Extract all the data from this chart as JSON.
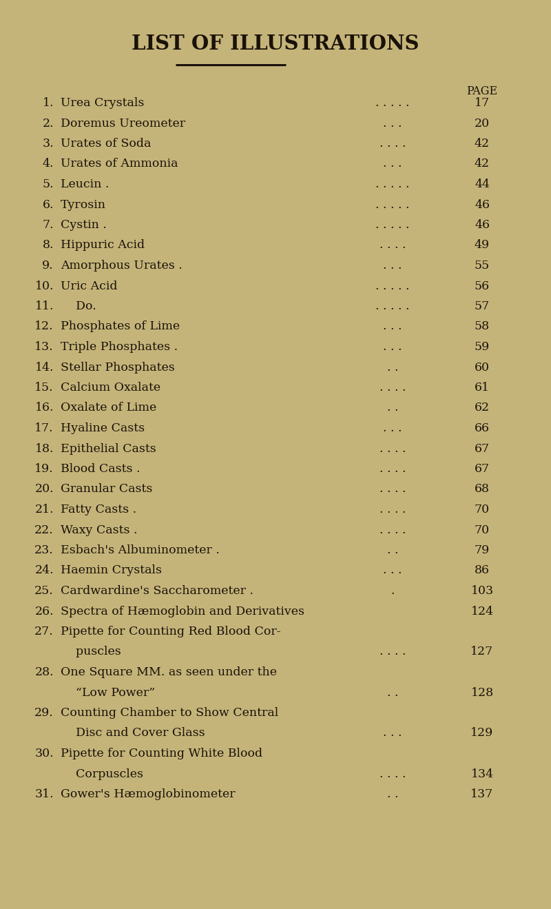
{
  "title": "LIST OF ILLUSTRATIONS",
  "background_color": "#c5b47a",
  "text_color": "#1a1208",
  "page_label": "PAGE",
  "entries": [
    {
      "num": "1.",
      "text": "Urea Crystals",
      "dots": ". . . . .",
      "page": "17"
    },
    {
      "num": "2.",
      "text": "Doremus Ureometer",
      "dots": ". . .",
      "page": "20"
    },
    {
      "num": "3.",
      "text": "Urates of Soda",
      "dots": ". . . .",
      "page": "42"
    },
    {
      "num": "4.",
      "text": "Urates of Ammonia",
      "dots": ". . .",
      "page": "42"
    },
    {
      "num": "5.",
      "text": "Leucin .",
      "dots": ". . . . .",
      "page": "44"
    },
    {
      "num": "6.",
      "text": "Tyrosin",
      "dots": ". . . . .",
      "page": "46"
    },
    {
      "num": "7.",
      "text": "Cystin .",
      "dots": ". . . . .",
      "page": "46"
    },
    {
      "num": "8.",
      "text": "Hippuric Acid",
      "dots": ". . . .",
      "page": "49"
    },
    {
      "num": "9.",
      "text": "Amorphous Urates .",
      "dots": ". . .",
      "page": "55"
    },
    {
      "num": "10.",
      "text": "Uric Acid",
      "dots": ". . . . .",
      "page": "56"
    },
    {
      "num": "11.",
      "text": "    Do.",
      "dots": ". . . . .",
      "page": "57"
    },
    {
      "num": "12.",
      "text": "Phosphates of Lime",
      "dots": ". . .",
      "page": "58"
    },
    {
      "num": "13.",
      "text": "Triple Phosphates .",
      "dots": ". . .",
      "page": "59"
    },
    {
      "num": "14.",
      "text": "Stellar Phosphates",
      "dots": ". .",
      "page": "60"
    },
    {
      "num": "15.",
      "text": "Calcium Oxalate",
      "dots": ". . . .",
      "page": "61"
    },
    {
      "num": "16.",
      "text": "Oxalate of Lime",
      "dots": ". .",
      "page": "62"
    },
    {
      "num": "17.",
      "text": "Hyaline Casts",
      "dots": ". . .",
      "page": "66"
    },
    {
      "num": "18.",
      "text": "Epithelial Casts",
      "dots": ". . . .",
      "page": "67"
    },
    {
      "num": "19.",
      "text": "Blood Casts .",
      "dots": ". . . .",
      "page": "67"
    },
    {
      "num": "20.",
      "text": "Granular Casts",
      "dots": ". . . .",
      "page": "68"
    },
    {
      "num": "21.",
      "text": "Fatty Casts .",
      "dots": ". . . .",
      "page": "70"
    },
    {
      "num": "22.",
      "text": "Waxy Casts .",
      "dots": ". . . .",
      "page": "70"
    },
    {
      "num": "23.",
      "text": "Esbach's Albuminometer .",
      "dots": ". .",
      "page": "79"
    },
    {
      "num": "24.",
      "text": "Haemin Crystals",
      "dots": ". . .",
      "page": "86"
    },
    {
      "num": "25.",
      "text": "Cardwardine's Saccharometer .",
      "dots": ".",
      "page": "103"
    },
    {
      "num": "26.",
      "text": "Spectra of Hæmoglobin and Derivatives",
      "dots": "",
      "page": "124"
    },
    {
      "num": "27.",
      "text": "Pipette for Counting Red Blood Cor-",
      "dots": "",
      "page": ""
    },
    {
      "num": "",
      "text": "    puscles",
      "dots": ". . . .",
      "page": "127"
    },
    {
      "num": "28.",
      "text": "One Square MM. as seen under the",
      "dots": "",
      "page": ""
    },
    {
      "num": "",
      "text": "    “Low Power”",
      "dots": ". .",
      "page": "128"
    },
    {
      "num": "29.",
      "text": "Counting Chamber to Show Central",
      "dots": "",
      "page": ""
    },
    {
      "num": "",
      "text": "    Disc and Cover Glass",
      "dots": ". . .",
      "page": "129"
    },
    {
      "num": "30.",
      "text": "Pipette for Counting White Blood",
      "dots": "",
      "page": ""
    },
    {
      "num": "",
      "text": "    Corpuscles",
      "dots": ". . . .",
      "page": "134"
    },
    {
      "num": "31.",
      "text": "Gower's Hæmoglobinometer",
      "dots": ". .",
      "page": "137"
    }
  ],
  "title_fontsize": 21,
  "entry_fontsize": 12.5,
  "page_label_fontsize": 11.5
}
